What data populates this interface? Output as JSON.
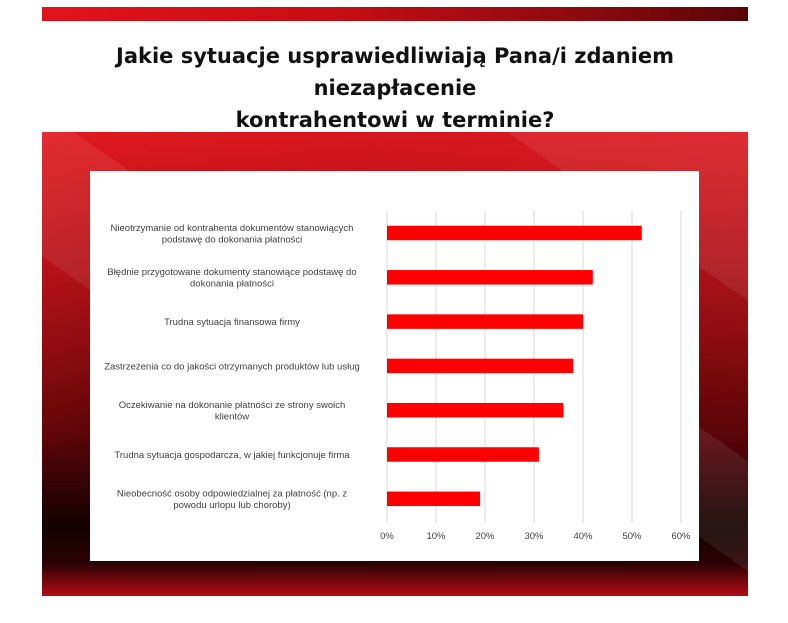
{
  "page": {
    "title_line1": "Jakie sytuacje usprawiedliwiają Pana/i zdaniem niezapłacenie",
    "title_line2": "kontrahentowi w terminie?"
  },
  "colors": {
    "bar": "#ff0000",
    "grid": "#d9d9d9",
    "banner": "#e3121a"
  },
  "chart_data": {
    "type": "bar",
    "orientation": "horizontal",
    "categories": [
      [
        "Nieotrzymanie od kontrahenta dokumentów stanowiących",
        "podstawę do dokonania płatności"
      ],
      [
        "Błędnie przygotowane dokumenty stanowiące podstawę do",
        "dokonania płatności"
      ],
      [
        "Trudna sytuacja finansowa firmy"
      ],
      [
        "Zastrzeżenia co do jakości otrzymanych produktów lub usług"
      ],
      [
        "Oczekiwanie na dokonanie płatności ze strony swoich",
        "klientów"
      ],
      [
        "Trudna sytuacja gospodarcza, w jakiej funkcjonuje firma"
      ],
      [
        "Nieobecność osoby odpowiedzialnej za płatność (np. z",
        "powodu urlopu lub choroby)"
      ]
    ],
    "values": [
      52,
      42,
      40,
      38,
      36,
      31,
      19
    ],
    "xlim": [
      0,
      60
    ],
    "xticks": [
      0,
      10,
      20,
      30,
      40,
      50,
      60
    ],
    "xtick_labels": [
      "0%",
      "10%",
      "20%",
      "30%",
      "40%",
      "50%",
      "60%"
    ],
    "grid": true,
    "legend": false
  }
}
